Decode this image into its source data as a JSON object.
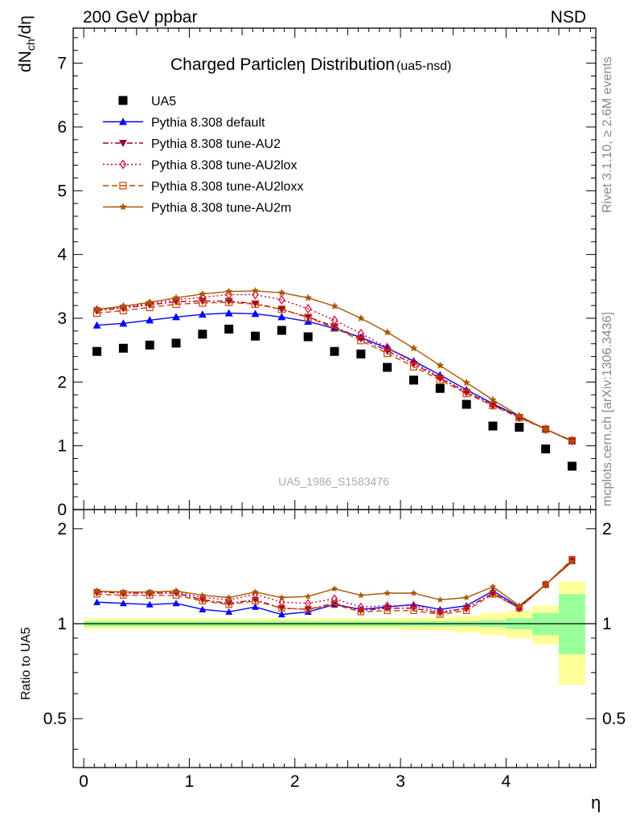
{
  "header": {
    "left": "200 GeV ppbar",
    "right": "NSD"
  },
  "title": {
    "main": "Charged Particle",
    "symbol": "η",
    "rest": " Distribution",
    "tag": "(ua5-nsd)"
  },
  "watermark": "UA5_1986_S1583476",
  "side_labels": {
    "rivet": "Rivet 3.1.10, ≥ 2.6M events",
    "mcplots": "mcplots.cern.ch [arXiv:1306.3436]"
  },
  "top_ylabel": {
    "d1": "dN",
    "sub1": "ch",
    "slash": "/d",
    "eta": "η"
  },
  "ratio_ylabel": "Ratio to UA5",
  "xlabel": "η",
  "chart_data": [
    {
      "type": "scatter",
      "panel": "main",
      "xlim": [
        -0.1,
        4.85
      ],
      "ylim": [
        0,
        7.55
      ],
      "y_ticks": [
        0,
        1,
        2,
        3,
        4,
        5,
        6,
        7
      ],
      "x": [
        0.125,
        0.375,
        0.625,
        0.875,
        1.125,
        1.375,
        1.625,
        1.875,
        2.125,
        2.375,
        2.625,
        2.875,
        3.125,
        3.375,
        3.625,
        3.875,
        4.125,
        4.375,
        4.625
      ],
      "legend_position": "top-left",
      "series": [
        {
          "name": "UA5",
          "marker": "square-filled",
          "color": "#000000",
          "line": "none",
          "values": [
            2.48,
            2.53,
            2.58,
            2.61,
            2.75,
            2.83,
            2.72,
            2.81,
            2.71,
            2.48,
            2.44,
            2.23,
            2.03,
            1.9,
            1.65,
            1.31,
            1.29,
            0.95,
            0.68
          ]
        },
        {
          "name": "Pythia 8.308 default",
          "marker": "triangle-up-filled",
          "color": "#0000ff",
          "line": "solid",
          "values": [
            2.89,
            2.92,
            2.97,
            3.02,
            3.06,
            3.08,
            3.07,
            3.02,
            2.95,
            2.84,
            2.7,
            2.53,
            2.33,
            2.11,
            1.88,
            1.66,
            1.46,
            1.26,
            1.07
          ]
        },
        {
          "name": "Pythia 8.308 tune-AU2",
          "marker": "triangle-down-filled",
          "color": "#990033",
          "line": "dashdot",
          "values": [
            3.12,
            3.16,
            3.21,
            3.26,
            3.27,
            3.27,
            3.23,
            3.14,
            3.02,
            2.87,
            2.68,
            2.49,
            2.28,
            2.06,
            1.84,
            1.64,
            1.45,
            1.26,
            1.08
          ]
        },
        {
          "name": "Pythia 8.308 tune-AU2lox",
          "marker": "diamond-open",
          "color": "#cc0033",
          "line": "dotted",
          "values": [
            3.13,
            3.17,
            3.23,
            3.29,
            3.33,
            3.37,
            3.37,
            3.29,
            3.15,
            2.97,
            2.76,
            2.54,
            2.31,
            2.07,
            1.85,
            1.64,
            1.45,
            1.26,
            1.08
          ]
        },
        {
          "name": "Pythia 8.308 tune-AU2loxx",
          "marker": "square-open",
          "color": "#cc4400",
          "line": "dashed",
          "values": [
            3.08,
            3.12,
            3.17,
            3.22,
            3.24,
            3.25,
            3.22,
            3.14,
            3.01,
            2.85,
            2.65,
            2.45,
            2.24,
            2.03,
            1.82,
            1.63,
            1.44,
            1.26,
            1.08
          ]
        },
        {
          "name": "Pythia 8.308 tune-AU2m",
          "marker": "star-filled",
          "color": "#aa5500",
          "line": "solid",
          "values": [
            3.14,
            3.19,
            3.25,
            3.32,
            3.38,
            3.42,
            3.43,
            3.4,
            3.32,
            3.19,
            3.0,
            2.78,
            2.53,
            2.26,
            1.99,
            1.72,
            1.47,
            1.26,
            1.07
          ]
        }
      ]
    },
    {
      "type": "line",
      "panel": "ratio",
      "ylabel": "Ratio to UA5",
      "xlabel": "η",
      "xlim": [
        -0.1,
        4.85
      ],
      "ylim": [
        0.35,
        2.3
      ],
      "y_ticks": [
        0.5,
        1,
        2
      ],
      "x_ticks": [
        0,
        1,
        2,
        3,
        4
      ],
      "reference_line": 1,
      "x": [
        0.125,
        0.375,
        0.625,
        0.875,
        1.125,
        1.375,
        1.625,
        1.875,
        2.125,
        2.375,
        2.625,
        2.875,
        3.125,
        3.375,
        3.625,
        3.875,
        4.125,
        4.375,
        4.625
      ],
      "band_inner": {
        "color": "#99ff99",
        "lower": [
          0.98,
          0.98,
          0.98,
          0.98,
          0.98,
          0.98,
          0.98,
          0.98,
          0.98,
          0.98,
          0.98,
          0.98,
          0.98,
          0.98,
          0.98,
          0.975,
          0.96,
          0.92,
          0.8
        ],
        "upper": [
          1.02,
          1.02,
          1.02,
          1.02,
          1.02,
          1.02,
          1.02,
          1.02,
          1.02,
          1.02,
          1.02,
          1.02,
          1.02,
          1.02,
          1.02,
          1.025,
          1.04,
          1.08,
          1.24
        ]
      },
      "band_outer": {
        "color": "#ffff99",
        "lower": [
          0.96,
          0.96,
          0.96,
          0.96,
          0.96,
          0.96,
          0.96,
          0.96,
          0.96,
          0.96,
          0.96,
          0.96,
          0.955,
          0.95,
          0.94,
          0.92,
          0.9,
          0.86,
          0.64
        ],
        "upper": [
          1.04,
          1.04,
          1.04,
          1.04,
          1.04,
          1.04,
          1.04,
          1.04,
          1.04,
          1.04,
          1.04,
          1.04,
          1.045,
          1.05,
          1.06,
          1.08,
          1.1,
          1.14,
          1.36
        ]
      },
      "series": [
        {
          "name": "Pythia 8.308 default",
          "color": "#0000ff",
          "marker": "triangle-up-filled",
          "line": "solid",
          "values": [
            1.17,
            1.16,
            1.15,
            1.16,
            1.11,
            1.09,
            1.13,
            1.07,
            1.09,
            1.15,
            1.11,
            1.13,
            1.15,
            1.11,
            1.14,
            1.27,
            1.13,
            1.33,
            1.58
          ]
        },
        {
          "name": "Pythia 8.308 tune-AU2",
          "color": "#990033",
          "marker": "triangle-down-filled",
          "line": "dashdot",
          "values": [
            1.26,
            1.25,
            1.25,
            1.25,
            1.19,
            1.16,
            1.19,
            1.12,
            1.11,
            1.16,
            1.1,
            1.12,
            1.12,
            1.08,
            1.12,
            1.25,
            1.12,
            1.33,
            1.59
          ]
        },
        {
          "name": "Pythia 8.308 tune-AU2lox",
          "color": "#cc0033",
          "marker": "diamond-open",
          "line": "dotted",
          "values": [
            1.26,
            1.25,
            1.25,
            1.26,
            1.21,
            1.19,
            1.24,
            1.17,
            1.16,
            1.2,
            1.13,
            1.14,
            1.14,
            1.09,
            1.12,
            1.25,
            1.12,
            1.33,
            1.59
          ]
        },
        {
          "name": "Pythia 8.308 tune-AU2loxx",
          "color": "#cc4400",
          "marker": "square-open",
          "line": "dashed",
          "values": [
            1.24,
            1.23,
            1.23,
            1.23,
            1.18,
            1.15,
            1.18,
            1.12,
            1.11,
            1.15,
            1.09,
            1.1,
            1.1,
            1.07,
            1.1,
            1.24,
            1.12,
            1.33,
            1.6
          ]
        },
        {
          "name": "Pythia 8.308 tune-AU2m",
          "color": "#aa5500",
          "marker": "star-filled",
          "line": "solid",
          "values": [
            1.27,
            1.26,
            1.26,
            1.27,
            1.23,
            1.21,
            1.26,
            1.21,
            1.22,
            1.29,
            1.23,
            1.25,
            1.25,
            1.19,
            1.21,
            1.31,
            1.14,
            1.33,
            1.57
          ]
        }
      ]
    }
  ]
}
